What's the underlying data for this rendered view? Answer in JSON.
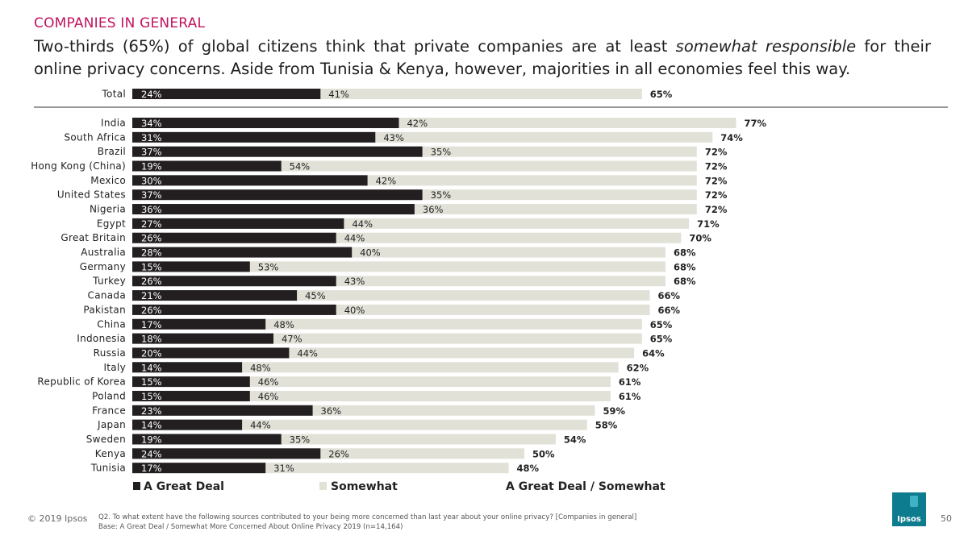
{
  "header": {
    "section": "COMPANIES IN GENERAL",
    "headline_part1": "Two-thirds (65%) of global citizens think that private companies are at least ",
    "headline_em": "somewhat responsible",
    "headline_part2": " for their online privacy concerns. Aside from Tunisia & Kenya, however, majorities in all economies feel this way."
  },
  "chart_data": {
    "type": "bar",
    "orientation": "horizontal",
    "stacked": true,
    "categories": [
      "Total",
      "India",
      "South Africa",
      "Brazil",
      "Hong Kong (China)",
      "Mexico",
      "United States",
      "Nigeria",
      "Egypt",
      "Great Britain",
      "Australia",
      "Germany",
      "Turkey",
      "Canada",
      "Pakistan",
      "China",
      "Indonesia",
      "Russia",
      "Italy",
      "Republic of Korea",
      "Poland",
      "France",
      "Japan",
      "Sweden",
      "Kenya",
      "Tunisia"
    ],
    "series": [
      {
        "name": "A Great Deal",
        "color": "#231f20",
        "values": [
          24,
          34,
          31,
          37,
          19,
          30,
          37,
          36,
          27,
          26,
          28,
          15,
          26,
          21,
          26,
          17,
          18,
          20,
          14,
          15,
          15,
          23,
          14,
          19,
          24,
          17
        ]
      },
      {
        "name": "Somewhat",
        "color": "#e2e1d8",
        "values": [
          41,
          42,
          43,
          35,
          54,
          42,
          35,
          36,
          44,
          44,
          40,
          53,
          43,
          45,
          40,
          48,
          47,
          44,
          48,
          46,
          46,
          36,
          44,
          35,
          26,
          31
        ]
      }
    ],
    "totals_label": "A Great Deal / Somewhat",
    "totals": [
      65,
      77,
      74,
      72,
      72,
      72,
      72,
      72,
      71,
      70,
      68,
      68,
      68,
      66,
      66,
      65,
      65,
      64,
      62,
      61,
      61,
      59,
      58,
      54,
      50,
      48
    ],
    "value_suffix": "%",
    "xlim": [
      0,
      80
    ],
    "legend": [
      "A Great Deal",
      "Somewhat",
      "A Great Deal / Somewhat"
    ],
    "legend_position": "bottom"
  },
  "footer": {
    "copyright": "© 2019 Ipsos",
    "question": "Q2. To what extent have the following sources contributed to your being more concerned than last year about your online privacy? [Companies in general]",
    "base": "Base: A Great Deal / Somewhat More Concerned About Online Privacy 2019 (n=14,164)",
    "page": "50",
    "logo": "Ipsos"
  }
}
